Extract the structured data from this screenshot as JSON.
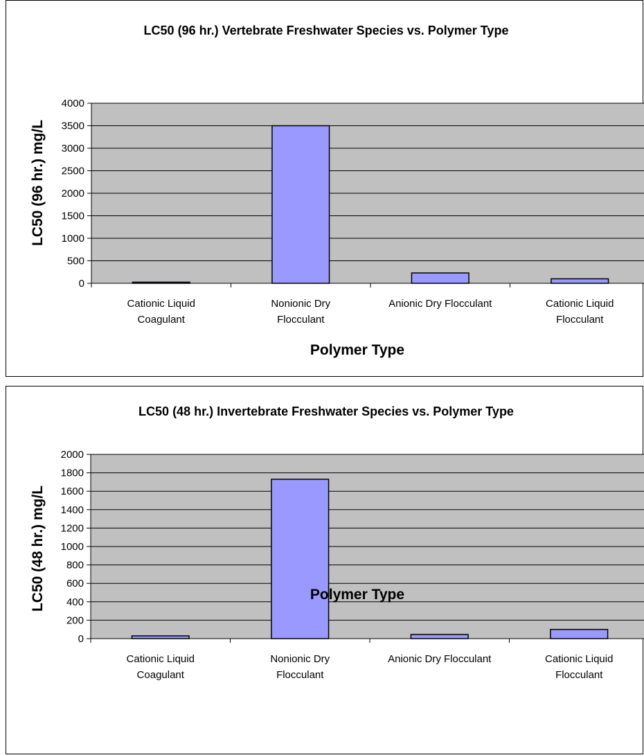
{
  "charts": [
    {
      "chart_data": {
        "type": "bar",
        "title": "LC50 (96 hr.) Vertebrate Freshwater Species vs. Polymer Type",
        "xlabel": "Polymer Type",
        "ylabel": "LC50 (96 hr.) mg/L",
        "categories": [
          [
            "Cationic Liquid",
            "Coagulant"
          ],
          [
            "Nonionic Dry",
            "Flocculant"
          ],
          [
            "Anionic Dry Flocculant"
          ],
          [
            "Cationic Liquid",
            "Flocculant"
          ]
        ],
        "values": [
          25,
          3500,
          230,
          100
        ],
        "ylim": [
          0,
          4000
        ],
        "yticks": [
          "0",
          "500",
          "1000",
          "1500",
          "2000",
          "2500",
          "3000",
          "3500",
          "4000"
        ],
        "grid": true,
        "colors": {
          "plot_bg": "#c0c0c0",
          "bar": "#9999ff"
        }
      }
    },
    {
      "chart_data": {
        "type": "bar",
        "title": "LC50 (48 hr.) Invertebrate Freshwater Species vs. Polymer Type",
        "xlabel": "Polymer Type",
        "ylabel": "LC50 (48 hr.) mg/L",
        "categories": [
          [
            "Cationic Liquid",
            "Coagulant"
          ],
          [
            "Nonionic Dry",
            "Flocculant"
          ],
          [
            "Anionic Dry Flocculant"
          ],
          [
            "Cationic Liquid",
            "Flocculant"
          ]
        ],
        "values": [
          30,
          1730,
          45,
          100
        ],
        "ylim": [
          0,
          2000
        ],
        "yticks": [
          "0",
          "200",
          "400",
          "600",
          "800",
          "1000",
          "1200",
          "1400",
          "1600",
          "1800",
          "2000"
        ],
        "grid": true,
        "colors": {
          "plot_bg": "#c0c0c0",
          "bar": "#9999ff"
        }
      }
    }
  ]
}
